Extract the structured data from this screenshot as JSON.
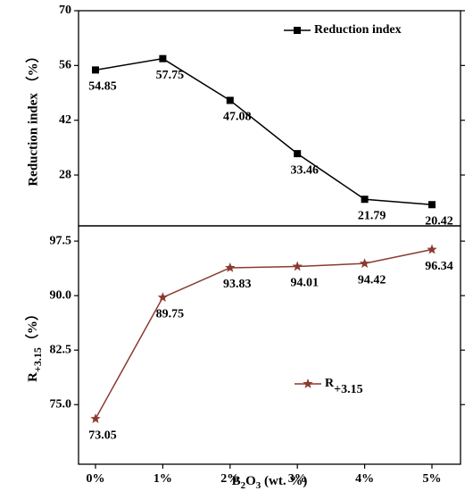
{
  "chart_data": [
    {
      "type": "line",
      "y_label": "Reduction index （%）",
      "ylim": [
        15,
        70
      ],
      "yticks": [
        28,
        42,
        56,
        70
      ],
      "legend": "upper right",
      "series": [
        {
          "name": "Reduction index",
          "color": "#000000",
          "marker": "square",
          "values": [
            54.85,
            57.75,
            47.08,
            33.46,
            21.79,
            20.42
          ]
        }
      ]
    },
    {
      "type": "line",
      "y_label": {
        "main": "R",
        "sub": "+3.15",
        "unit": "（%）"
      },
      "x_label": {
        "main": "B",
        "sub1": "2",
        "mid": "O",
        "sub2": "3",
        "rest": " (wt. %)"
      },
      "categories": [
        "0%",
        "1%",
        "2%",
        "3%",
        "4%",
        "5%"
      ],
      "ylim": [
        66.8,
        99.6
      ],
      "yticks": [
        {
          "value": 75,
          "label": "75.0"
        },
        82.5,
        {
          "value": 90,
          "label": "90.0"
        },
        97.5
      ],
      "legend": "center right",
      "series": [
        {
          "name": "R",
          "name_sub": "+3.15",
          "color": "#8b3a2f",
          "marker": "star",
          "values": [
            73.05,
            89.75,
            93.83,
            94.01,
            94.42,
            96.34
          ]
        }
      ]
    }
  ]
}
